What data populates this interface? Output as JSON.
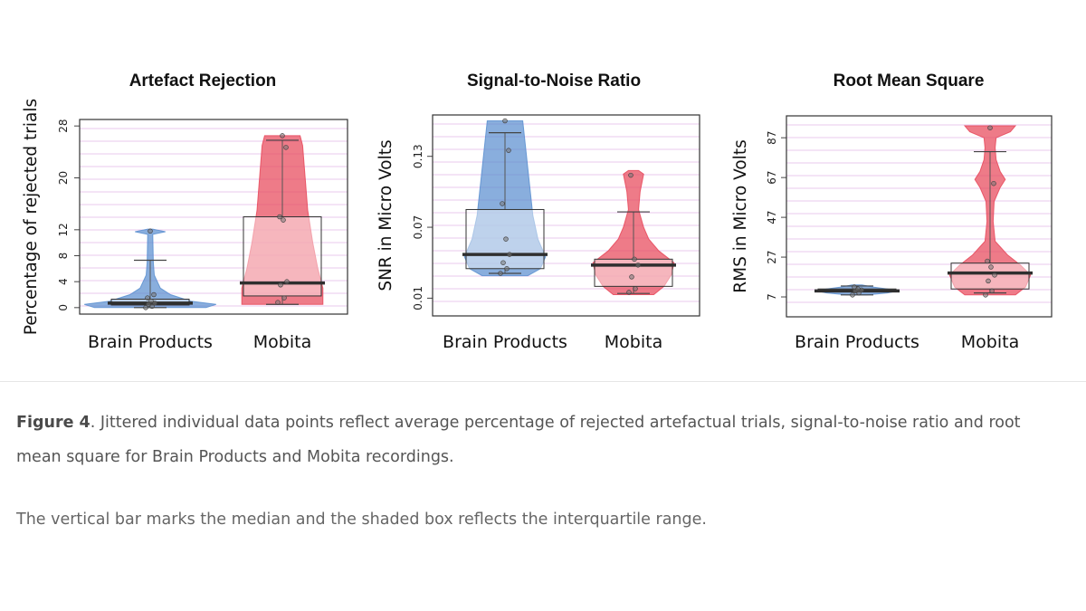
{
  "caption": {
    "label": "Figure 4",
    "text": ". Jittered individual data points reflect average percentage of rejected artefactual trials, signal-to-noise ratio and root mean square for Brain Products and Mobita recordings."
  },
  "note": "The vertical bar marks the median and the shaded box reflects the interquartile range.",
  "colors": {
    "brain_products": "#5b8fd0",
    "mobita": "#e8485a",
    "grid": "#e8c8ec",
    "median": "#2f2f2f"
  },
  "chart_data": [
    {
      "type": "violin-box",
      "title": "Artefact Rejection",
      "ylabel": "Percentage of rejected trials",
      "xlabel": "",
      "categories": [
        "Brain Products",
        "Mobita"
      ],
      "yticks": [
        "0",
        "4",
        "8",
        "12",
        "20",
        "28"
      ],
      "ytick_values": [
        0,
        4,
        8,
        12,
        20,
        28
      ],
      "ylim": [
        -1,
        29
      ],
      "grid": true,
      "series": [
        {
          "category": "Brain Products",
          "color_key": "brain_products",
          "box": {
            "q1": 0.4,
            "median": 0.7,
            "q3": 1.3
          },
          "whiskers": [
            0,
            7.3
          ],
          "points": [
            0,
            0.2,
            0.5,
            0.7,
            1,
            1.5,
            2,
            11.8
          ],
          "violin": [
            [
              0,
              11
            ],
            [
              0.5,
              13
            ],
            [
              1,
              8
            ],
            [
              2,
              4
            ],
            [
              3,
              2
            ],
            [
              5,
              0.8
            ],
            [
              7,
              0.6
            ],
            [
              11.3,
              0.5
            ],
            [
              11.7,
              3
            ],
            [
              12.1,
              0.5
            ]
          ]
        },
        {
          "category": "Mobita",
          "color_key": "mobita",
          "box": {
            "q1": 1.8,
            "median": 3.8,
            "q3": 14
          },
          "whiskers": [
            0.5,
            25.8
          ],
          "points": [
            0.8,
            1.5,
            3.5,
            4,
            13.5,
            14,
            24.7,
            26.5
          ],
          "violin": [
            [
              0.5,
              8
            ],
            [
              3,
              8
            ],
            [
              6,
              7
            ],
            [
              10,
              6
            ],
            [
              15,
              5
            ],
            [
              20,
              4.5
            ],
            [
              25,
              4
            ],
            [
              26.5,
              3.5
            ]
          ]
        }
      ]
    },
    {
      "type": "violin-box",
      "title": "Signal-to-Noise Ratio",
      "ylabel": "SNR in Micro Volts",
      "xlabel": "",
      "categories": [
        "Brain Products",
        "Mobita"
      ],
      "yticks": [
        "0.01",
        "0.07",
        "0.13"
      ],
      "ytick_values": [
        0.01,
        0.07,
        0.13
      ],
      "ylim": [
        -0.005,
        0.165
      ],
      "grid": true,
      "series": [
        {
          "category": "Brain Products",
          "color_key": "brain_products",
          "box": {
            "q1": 0.035,
            "median": 0.047,
            "q3": 0.085
          },
          "whiskers": [
            0.031,
            0.15
          ],
          "points": [
            0.031,
            0.035,
            0.04,
            0.047,
            0.06,
            0.09,
            0.135,
            0.16
          ],
          "violin": [
            [
              0.029,
              4.5
            ],
            [
              0.035,
              7
            ],
            [
              0.045,
              8
            ],
            [
              0.06,
              6.5
            ],
            [
              0.08,
              5.5
            ],
            [
              0.1,
              5
            ],
            [
              0.12,
              4.5
            ],
            [
              0.14,
              4
            ],
            [
              0.16,
              3.5
            ]
          ]
        },
        {
          "category": "Mobita",
          "color_key": "mobita",
          "box": {
            "q1": 0.02,
            "median": 0.038,
            "q3": 0.043
          },
          "whiskers": [
            0.014,
            0.083
          ],
          "points": [
            0.015,
            0.018,
            0.028,
            0.038,
            0.043,
            0.114
          ],
          "violin": [
            [
              0.013,
              4
            ],
            [
              0.02,
              6
            ],
            [
              0.03,
              7.5
            ],
            [
              0.04,
              8
            ],
            [
              0.05,
              5
            ],
            [
              0.06,
              3
            ],
            [
              0.07,
              2
            ],
            [
              0.085,
              1
            ],
            [
              0.1,
              1.3
            ],
            [
              0.115,
              2
            ],
            [
              0.118,
              1
            ]
          ]
        }
      ]
    },
    {
      "type": "violin-box",
      "title": "Root Mean Square",
      "ylabel": "RMS in Micro Volts",
      "xlabel": "",
      "categories": [
        "Brain Products",
        "Mobita"
      ],
      "yticks": [
        "7",
        "27",
        "47",
        "67",
        "87"
      ],
      "ytick_values": [
        7,
        27,
        47,
        67,
        87
      ],
      "ylim": [
        -3,
        98
      ],
      "grid": true,
      "series": [
        {
          "category": "Brain Products",
          "color_key": "brain_products",
          "box": {
            "q1": 9.5,
            "median": 10,
            "q3": 11
          },
          "whiskers": [
            8,
            12.5
          ],
          "points": [
            8,
            9,
            10,
            10.5,
            11,
            12
          ],
          "violin": [
            [
              8,
              2
            ],
            [
              9,
              6
            ],
            [
              10,
              8
            ],
            [
              11,
              6
            ],
            [
              12,
              3
            ],
            [
              13,
              1
            ]
          ]
        },
        {
          "category": "Mobita",
          "color_key": "mobita",
          "box": {
            "q1": 11,
            "median": 19,
            "q3": 24
          },
          "whiskers": [
            9,
            80
          ],
          "points": [
            8,
            10,
            15,
            18,
            22,
            25,
            64,
            92
          ],
          "violin": [
            [
              8,
              5
            ],
            [
              12,
              7
            ],
            [
              18,
              8
            ],
            [
              23,
              6
            ],
            [
              28,
              3.5
            ],
            [
              35,
              1
            ],
            [
              45,
              0.6
            ],
            [
              55,
              0.8
            ],
            [
              62,
              2
            ],
            [
              66,
              3
            ],
            [
              70,
              2
            ],
            [
              76,
              1.2
            ],
            [
              82,
              1
            ],
            [
              87,
              1.2
            ],
            [
              90,
              4
            ],
            [
              93,
              5
            ]
          ]
        }
      ]
    }
  ]
}
